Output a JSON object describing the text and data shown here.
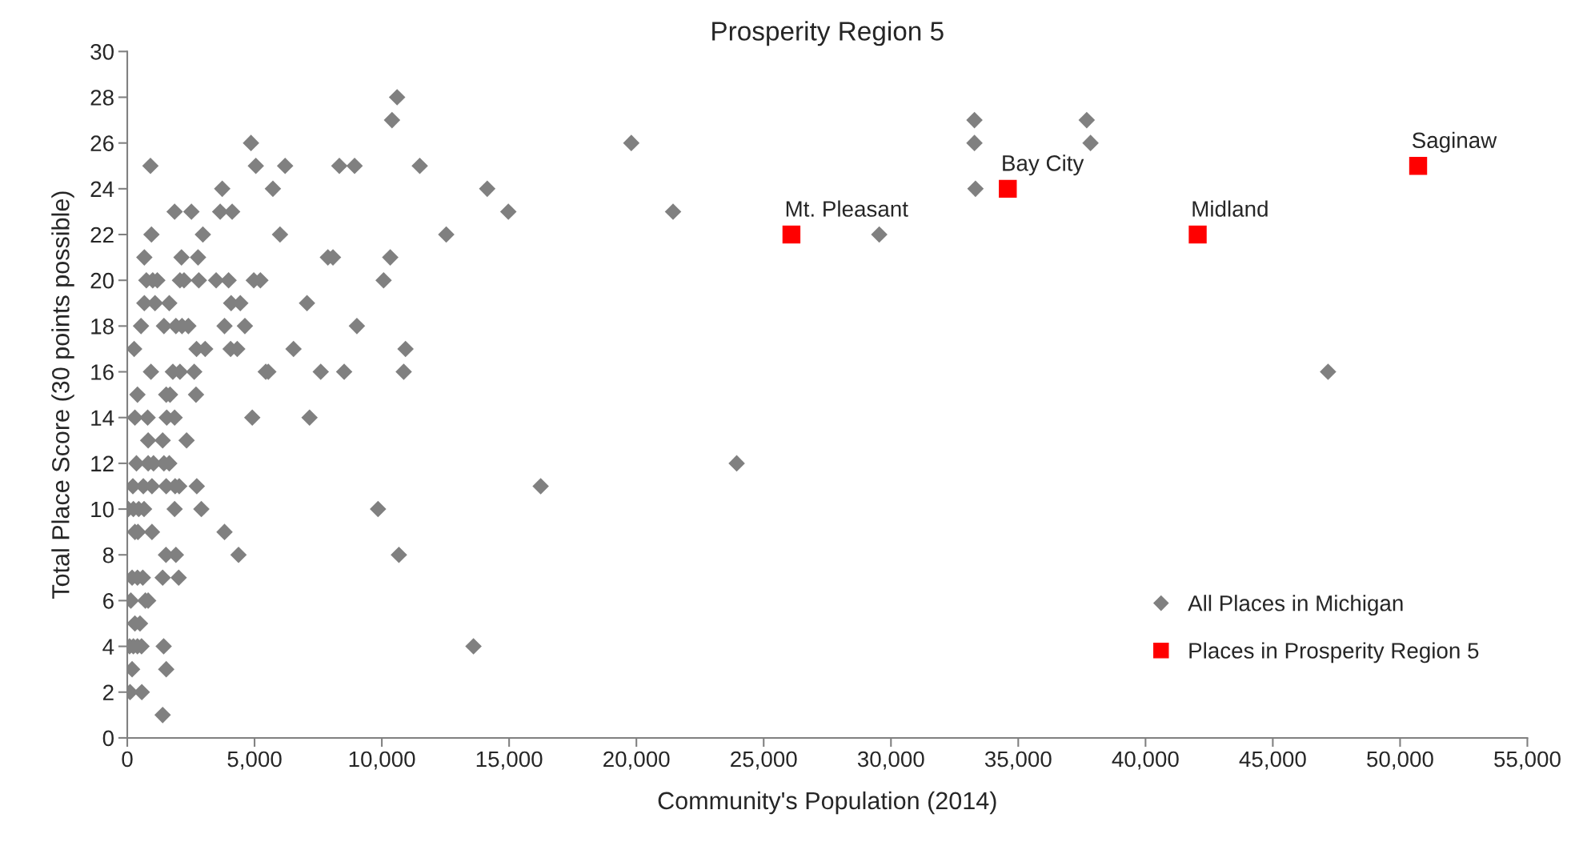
{
  "chart_data": {
    "type": "scatter",
    "title": "Prosperity Region 5",
    "xlabel": "Community's Population (2014)",
    "ylabel": "Total Place Score (30 points possible)",
    "xlim": [
      0,
      55000
    ],
    "ylim": [
      0,
      30
    ],
    "xticks": [
      0,
      {
        "value": 5000,
        "label": "5,000"
      },
      {
        "value": 10000,
        "label": "10,000"
      },
      {
        "value": 15000,
        "label": "15,000"
      },
      {
        "value": 20000,
        "label": "20,000"
      },
      {
        "value": 25000,
        "label": "25,000"
      },
      {
        "value": 30000,
        "label": "30,000"
      },
      {
        "value": 35000,
        "label": "35,000"
      },
      {
        "value": 40000,
        "label": "40,000"
      },
      {
        "value": 45000,
        "label": "45,000"
      },
      {
        "value": 50000,
        "label": "50,000"
      },
      {
        "value": 55000,
        "label": "55,000"
      }
    ],
    "yticks": [
      0,
      2,
      4,
      6,
      8,
      10,
      12,
      14,
      16,
      18,
      20,
      22,
      24,
      26,
      28,
      30
    ],
    "grid": false,
    "legend": "bottom right",
    "series": [
      {
        "name": "All Places in Michigan",
        "color": "#808080",
        "marker": "diamond",
        "x": [
          10600,
          10400,
          33280,
          37690,
          4860,
          19800,
          33280,
          37840,
          910,
          5050,
          6200,
          8330,
          8930,
          11490,
          3730,
          5720,
          14140,
          33320,
          1860,
          2520,
          3650,
          4120,
          14970,
          21440,
          950,
          2970,
          6000,
          12530,
          29540,
          670,
          2130,
          2780,
          7880,
          8080,
          10330,
          750,
          1000,
          1180,
          2070,
          2230,
          2810,
          3490,
          3980,
          4970,
          5230,
          10070,
          670,
          1090,
          1650,
          4080,
          4440,
          7060,
          540,
          1440,
          1910,
          2150,
          2400,
          3820,
          4620,
          9020,
          270,
          2720,
          3060,
          4060,
          4320,
          6530,
          10930,
          930,
          1790,
          2070,
          2630,
          5440,
          5540,
          7600,
          8520,
          10860,
          47170,
          400,
          1530,
          1680,
          2700,
          300,
          800,
          1550,
          1860,
          4910,
          7160,
          820,
          1390,
          2330,
          360,
          820,
          1030,
          1440,
          1650,
          23940,
          220,
          630,
          970,
          1530,
          1880,
          2040,
          2730,
          16240,
          40,
          240,
          450,
          660,
          1860,
          2910,
          9850,
          300,
          420,
          970,
          3820,
          1520,
          1910,
          4370,
          10670,
          190,
          400,
          610,
          1390,
          2020,
          140,
          710,
          820,
          300,
          500,
          90,
          240,
          400,
          560,
          1430,
          13600,
          190,
          1530,
          110,
          570,
          1390
        ],
        "values": [
          28,
          27,
          27,
          27,
          26,
          26,
          26,
          26,
          25,
          25,
          25,
          25,
          25,
          25,
          24,
          24,
          24,
          24,
          23,
          23,
          23,
          23,
          23,
          23,
          22,
          22,
          22,
          22,
          22,
          21,
          21,
          21,
          21,
          21,
          21,
          20,
          20,
          20,
          20,
          20,
          20,
          20,
          20,
          20,
          20,
          20,
          19,
          19,
          19,
          19,
          19,
          19,
          18,
          18,
          18,
          18,
          18,
          18,
          18,
          18,
          17,
          17,
          17,
          17,
          17,
          17,
          17,
          16,
          16,
          16,
          16,
          16,
          16,
          16,
          16,
          16,
          16,
          15,
          15,
          15,
          15,
          14,
          14,
          14,
          14,
          14,
          14,
          13,
          13,
          13,
          12,
          12,
          12,
          12,
          12,
          12,
          11,
          11,
          11,
          11,
          11,
          11,
          11,
          11,
          10,
          10,
          10,
          10,
          10,
          10,
          10,
          9,
          9,
          9,
          9,
          8,
          8,
          8,
          8,
          7,
          7,
          7,
          7,
          7,
          6,
          6,
          6,
          5,
          5,
          4,
          4,
          4,
          4,
          4,
          4,
          3,
          3,
          2,
          2,
          1
        ]
      },
      {
        "name": "Places in Prosperity Region 5",
        "color": "#ff0000",
        "marker": "square",
        "x": [
          26090,
          34590,
          42050,
          50710
        ],
        "values": [
          22,
          24,
          22,
          25
        ]
      }
    ],
    "annotations": [
      {
        "text": "Mt. Pleasant",
        "x": 26090,
        "y": 22
      },
      {
        "text": "Bay City",
        "x": 34590,
        "y": 24
      },
      {
        "text": "Midland",
        "x": 42050,
        "y": 22
      },
      {
        "text": "Saginaw",
        "x": 50710,
        "y": 25
      }
    ]
  }
}
